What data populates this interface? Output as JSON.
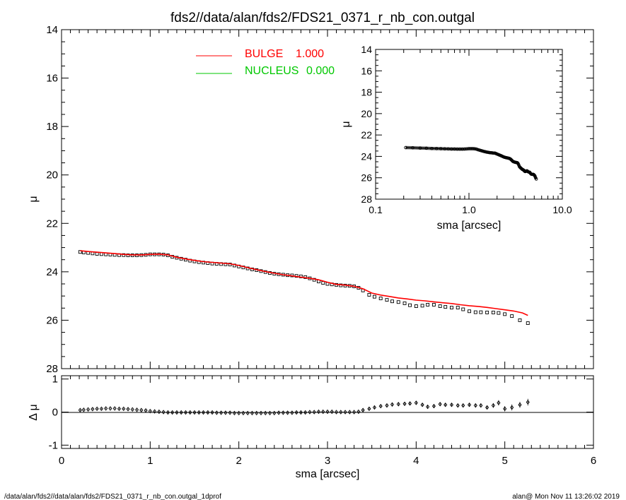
{
  "title": "fds2//data/alan/fds2/FDS21_0371_r_nb_con.outgal",
  "footer": {
    "left": "/data/alan/fds2//data/alan/fds2/FDS21_0371_r_nb_con.outgal_1dprof",
    "right": "alan@  Mon Nov 11 13:26:02 2019"
  },
  "colors": {
    "bulge": "#ff0000",
    "nucleus": "#00c800",
    "data": "#000000",
    "axis": "#000000"
  },
  "legend": [
    {
      "label": "BULGE",
      "value": "1.000",
      "color": "#ff0000"
    },
    {
      "label": "NUCLEUS",
      "value": "0.000",
      "color": "#00c800"
    }
  ],
  "chart_data": [
    {
      "id": "main",
      "type": "scatter",
      "xlabel": "",
      "ylabel": "μ",
      "xlim": [
        0,
        6
      ],
      "ylim": [
        28,
        14
      ],
      "y_inverted": true,
      "xticks": [],
      "yticks": [
        "14",
        "16",
        "18",
        "20",
        "22",
        "24",
        "26",
        "28"
      ],
      "series": [
        {
          "name": "data",
          "style": "squares",
          "x": [
            0.21,
            0.25,
            0.3,
            0.35,
            0.4,
            0.45,
            0.5,
            0.55,
            0.6,
            0.65,
            0.7,
            0.75,
            0.8,
            0.85,
            0.9,
            0.95,
            1.0,
            1.05,
            1.1,
            1.15,
            1.2,
            1.25,
            1.3,
            1.35,
            1.4,
            1.45,
            1.5,
            1.55,
            1.6,
            1.65,
            1.7,
            1.75,
            1.8,
            1.85,
            1.9,
            1.95,
            2.0,
            2.05,
            2.1,
            2.15,
            2.2,
            2.25,
            2.3,
            2.35,
            2.4,
            2.45,
            2.5,
            2.55,
            2.6,
            2.65,
            2.7,
            2.75,
            2.8,
            2.85,
            2.9,
            2.95,
            3.0,
            3.05,
            3.1,
            3.15,
            3.2,
            3.25,
            3.3,
            3.35,
            3.4,
            3.47,
            3.53,
            3.6,
            3.67,
            3.73,
            3.8,
            3.87,
            3.93,
            4.0,
            4.07,
            4.13,
            4.2,
            4.27,
            4.33,
            4.4,
            4.47,
            4.53,
            4.6,
            4.67,
            4.73,
            4.8,
            4.87,
            4.93,
            5.0,
            5.08,
            5.17,
            5.26
          ],
          "values": [
            23.18,
            23.2,
            23.22,
            23.24,
            23.26,
            23.27,
            23.28,
            23.29,
            23.3,
            23.31,
            23.31,
            23.32,
            23.32,
            23.32,
            23.31,
            23.3,
            23.28,
            23.28,
            23.28,
            23.29,
            23.32,
            23.38,
            23.42,
            23.46,
            23.5,
            23.54,
            23.57,
            23.6,
            23.62,
            23.64,
            23.66,
            23.67,
            23.68,
            23.69,
            23.7,
            23.74,
            23.78,
            23.82,
            23.86,
            23.9,
            23.93,
            23.97,
            24.01,
            24.05,
            24.08,
            24.1,
            24.12,
            24.14,
            24.15,
            24.17,
            24.19,
            24.22,
            24.27,
            24.33,
            24.4,
            24.46,
            24.5,
            24.52,
            24.54,
            24.56,
            24.57,
            24.58,
            24.6,
            24.66,
            24.77,
            24.95,
            25.03,
            25.1,
            25.16,
            25.22,
            25.25,
            25.3,
            25.38,
            25.42,
            25.4,
            25.36,
            25.36,
            25.42,
            25.45,
            25.48,
            25.48,
            25.55,
            25.63,
            25.67,
            25.67,
            25.68,
            25.68,
            25.7,
            25.75,
            25.83,
            26.0,
            26.12
          ]
        },
        {
          "name": "BULGE",
          "style": "line",
          "x": [
            0.21,
            0.3,
            0.4,
            0.5,
            0.6,
            0.7,
            0.8,
            0.9,
            1.0,
            1.1,
            1.2,
            1.3,
            1.4,
            1.5,
            1.6,
            1.7,
            1.8,
            1.9,
            2.0,
            2.1,
            2.2,
            2.3,
            2.4,
            2.5,
            2.6,
            2.7,
            2.8,
            2.9,
            3.0,
            3.1,
            3.2,
            3.3,
            3.4,
            3.5,
            3.6,
            3.7,
            3.8,
            3.9,
            4.0,
            4.1,
            4.2,
            4.3,
            4.4,
            4.5,
            4.6,
            4.7,
            4.8,
            4.9,
            5.0,
            5.1,
            5.2,
            5.26
          ],
          "values": [
            23.13,
            23.16,
            23.19,
            23.22,
            23.25,
            23.28,
            23.3,
            23.3,
            23.28,
            23.27,
            23.3,
            23.4,
            23.47,
            23.53,
            23.58,
            23.61,
            23.64,
            23.67,
            23.74,
            23.83,
            23.91,
            23.99,
            24.06,
            24.12,
            24.17,
            24.22,
            24.27,
            24.33,
            24.43,
            24.52,
            24.55,
            24.6,
            24.7,
            24.88,
            24.96,
            25.02,
            25.08,
            25.12,
            25.17,
            25.2,
            25.24,
            25.28,
            25.31,
            25.36,
            25.4,
            25.43,
            25.47,
            25.52,
            25.57,
            25.62,
            25.7,
            25.8
          ]
        }
      ]
    },
    {
      "id": "residual",
      "type": "scatter",
      "xlabel": "sma [arcsec]",
      "ylabel": "Δ μ",
      "xlim": [
        0,
        6
      ],
      "ylim": [
        -1.1,
        1.1
      ],
      "xticks": [
        "0",
        "1",
        "2",
        "3",
        "4",
        "5",
        "6"
      ],
      "yticks": [
        "-1",
        "0",
        "1"
      ],
      "series": [
        {
          "name": "residual",
          "style": "diamonds",
          "x": [
            0.21,
            0.25,
            0.3,
            0.35,
            0.4,
            0.45,
            0.5,
            0.55,
            0.6,
            0.65,
            0.7,
            0.75,
            0.8,
            0.85,
            0.9,
            0.95,
            1.0,
            1.05,
            1.1,
            1.15,
            1.2,
            1.25,
            1.3,
            1.35,
            1.4,
            1.45,
            1.5,
            1.55,
            1.6,
            1.65,
            1.7,
            1.75,
            1.8,
            1.85,
            1.9,
            1.95,
            2.0,
            2.05,
            2.1,
            2.15,
            2.2,
            2.25,
            2.3,
            2.35,
            2.4,
            2.45,
            2.5,
            2.55,
            2.6,
            2.65,
            2.7,
            2.75,
            2.8,
            2.85,
            2.9,
            2.95,
            3.0,
            3.05,
            3.1,
            3.15,
            3.2,
            3.25,
            3.3,
            3.35,
            3.4,
            3.47,
            3.53,
            3.6,
            3.67,
            3.73,
            3.8,
            3.87,
            3.93,
            4.0,
            4.07,
            4.13,
            4.2,
            4.27,
            4.33,
            4.4,
            4.47,
            4.53,
            4.6,
            4.67,
            4.73,
            4.8,
            4.87,
            4.93,
            5.0,
            5.08,
            5.17,
            5.26
          ],
          "values": [
            0.06,
            0.07,
            0.08,
            0.09,
            0.1,
            0.1,
            0.11,
            0.11,
            0.11,
            0.1,
            0.1,
            0.09,
            0.08,
            0.07,
            0.06,
            0.05,
            0.03,
            0.02,
            0.01,
            0.0,
            -0.01,
            -0.01,
            -0.01,
            -0.01,
            -0.01,
            -0.01,
            -0.01,
            -0.01,
            -0.01,
            -0.01,
            -0.01,
            -0.02,
            -0.02,
            -0.02,
            -0.02,
            -0.03,
            -0.03,
            -0.03,
            -0.03,
            -0.03,
            -0.03,
            -0.03,
            -0.03,
            -0.03,
            -0.03,
            -0.02,
            -0.02,
            -0.02,
            -0.02,
            -0.01,
            -0.01,
            -0.01,
            0.0,
            0.0,
            0.01,
            0.01,
            0.01,
            0.01,
            0.0,
            0.0,
            0.0,
            0.0,
            0.0,
            0.01,
            0.06,
            0.1,
            0.14,
            0.18,
            0.2,
            0.23,
            0.24,
            0.25,
            0.26,
            0.28,
            0.22,
            0.16,
            0.18,
            0.24,
            0.22,
            0.22,
            0.2,
            0.2,
            0.22,
            0.2,
            0.2,
            0.14,
            0.2,
            0.28,
            0.1,
            0.14,
            0.22,
            0.3
          ],
          "errors": [
            0.02,
            0.02,
            0.02,
            0.02,
            0.02,
            0.02,
            0.02,
            0.02,
            0.02,
            0.02,
            0.02,
            0.02,
            0.02,
            0.02,
            0.02,
            0.02,
            0.02,
            0.02,
            0.02,
            0.02,
            0.02,
            0.02,
            0.02,
            0.02,
            0.02,
            0.02,
            0.02,
            0.02,
            0.02,
            0.02,
            0.02,
            0.02,
            0.02,
            0.02,
            0.02,
            0.02,
            0.02,
            0.02,
            0.02,
            0.02,
            0.02,
            0.02,
            0.02,
            0.02,
            0.02,
            0.02,
            0.02,
            0.02,
            0.02,
            0.02,
            0.02,
            0.02,
            0.02,
            0.02,
            0.02,
            0.02,
            0.02,
            0.02,
            0.02,
            0.02,
            0.02,
            0.02,
            0.02,
            0.02,
            0.03,
            0.03,
            0.03,
            0.03,
            0.04,
            0.04,
            0.04,
            0.04,
            0.05,
            0.05,
            0.05,
            0.05,
            0.05,
            0.05,
            0.05,
            0.05,
            0.05,
            0.05,
            0.06,
            0.06,
            0.06,
            0.06,
            0.07,
            0.08,
            0.08,
            0.09,
            0.09,
            0.1
          ]
        }
      ]
    },
    {
      "id": "inset",
      "type": "scatter",
      "xlabel": "sma [arcsec]",
      "ylabel": "μ",
      "x_scale": "log",
      "xlim": [
        0.1,
        10.0
      ],
      "ylim": [
        28,
        14
      ],
      "y_inverted": true,
      "xticks": [
        "0.1",
        "1.0",
        "10.0"
      ],
      "yticks": [
        "14",
        "16",
        "18",
        "20",
        "22",
        "24",
        "26",
        "28"
      ],
      "series": [
        {
          "name": "data",
          "style": "circles-line",
          "x": [
            0.21,
            0.25,
            0.3,
            0.35,
            0.4,
            0.45,
            0.5,
            0.55,
            0.6,
            0.65,
            0.7,
            0.75,
            0.8,
            0.85,
            0.9,
            0.95,
            1.0,
            1.05,
            1.1,
            1.15,
            1.2,
            1.25,
            1.3,
            1.35,
            1.4,
            1.45,
            1.5,
            1.55,
            1.6,
            1.65,
            1.7,
            1.75,
            1.8,
            1.85,
            1.9,
            1.95,
            2.0,
            2.05,
            2.1,
            2.15,
            2.2,
            2.25,
            2.3,
            2.35,
            2.4,
            2.45,
            2.5,
            2.55,
            2.6,
            2.65,
            2.7,
            2.75,
            2.8,
            2.85,
            2.9,
            2.95,
            3.0,
            3.05,
            3.1,
            3.15,
            3.2,
            3.25,
            3.3,
            3.35,
            3.4,
            3.47,
            3.53,
            3.6,
            3.67,
            3.73,
            3.8,
            3.87,
            3.93,
            4.0,
            4.07,
            4.13,
            4.2,
            4.27,
            4.33,
            4.4,
            4.47,
            4.53,
            4.6,
            4.67,
            4.73,
            4.8,
            4.87,
            4.93,
            5.0,
            5.08,
            5.17,
            5.26
          ],
          "values": [
            23.18,
            23.2,
            23.22,
            23.24,
            23.26,
            23.27,
            23.28,
            23.29,
            23.3,
            23.31,
            23.31,
            23.32,
            23.32,
            23.32,
            23.31,
            23.3,
            23.28,
            23.28,
            23.28,
            23.29,
            23.32,
            23.38,
            23.42,
            23.46,
            23.5,
            23.54,
            23.57,
            23.6,
            23.62,
            23.64,
            23.66,
            23.67,
            23.68,
            23.69,
            23.7,
            23.74,
            23.78,
            23.82,
            23.86,
            23.9,
            23.93,
            23.97,
            24.01,
            24.05,
            24.08,
            24.1,
            24.12,
            24.14,
            24.15,
            24.17,
            24.19,
            24.22,
            24.27,
            24.33,
            24.4,
            24.46,
            24.5,
            24.52,
            24.54,
            24.56,
            24.57,
            24.58,
            24.6,
            24.66,
            24.77,
            24.95,
            25.03,
            25.1,
            25.16,
            25.22,
            25.25,
            25.3,
            25.38,
            25.42,
            25.4,
            25.36,
            25.36,
            25.42,
            25.45,
            25.48,
            25.48,
            25.55,
            25.63,
            25.67,
            25.67,
            25.68,
            25.68,
            25.7,
            25.75,
            25.83,
            26.0,
            26.12
          ]
        }
      ]
    }
  ]
}
